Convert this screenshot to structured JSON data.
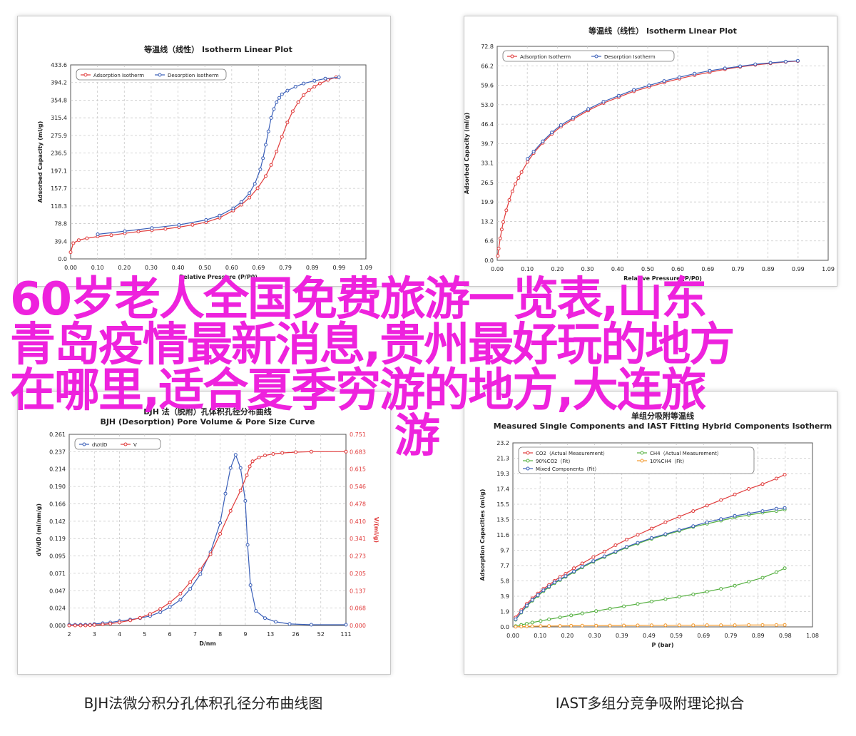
{
  "overlay": {
    "line1": "60岁老人全国免费旅游一览表,山东",
    "line2": "青岛疫情最新消息,贵州最好玩的地方",
    "line3": "在哪里,适合夏季穷游的地方,大连旅",
    "line4": "游",
    "color": "#ee22dd"
  },
  "captions": {
    "bottom_left": "BJH法微分积分孔体积孔径分布曲线图",
    "bottom_right": "IAST多组分竞争吸附理论拟合"
  },
  "colors": {
    "red": "#e03a3a",
    "blue": "#3a5fb8",
    "green": "#55b040",
    "orange": "#f29a2e"
  },
  "chart_data": [
    {
      "type": "line",
      "title": "等温线（线性） Isotherm Linear Plot",
      "xlabel": "Relative Pressure (P/P0)",
      "ylabel": "Adsorbed Capacity (ml/g)",
      "xlim": [
        0,
        1.09
      ],
      "ylim": [
        0,
        433.6
      ],
      "xticks": [
        "0.00",
        "0.10",
        "0.20",
        "0.30",
        "0.40",
        "0.50",
        "0.60",
        "0.69",
        "0.79",
        "0.89",
        "0.99",
        "1.09"
      ],
      "yticks": [
        "0.0",
        "39.4",
        "78.8",
        "118.3",
        "157.7",
        "197.1",
        "236.5",
        "275.9",
        "315.4",
        "354.8",
        "394.2",
        "433.6"
      ],
      "grid": true,
      "legend": "top-left",
      "series": [
        {
          "name": "Adsorption Isotherm",
          "color": "#e03a3a",
          "x": [
            0.0,
            0.01,
            0.03,
            0.06,
            0.1,
            0.15,
            0.2,
            0.25,
            0.3,
            0.35,
            0.4,
            0.45,
            0.5,
            0.55,
            0.6,
            0.63,
            0.66,
            0.69,
            0.72,
            0.74,
            0.76,
            0.78,
            0.8,
            0.82,
            0.84,
            0.86,
            0.88,
            0.9,
            0.92,
            0.95,
            0.98
          ],
          "y": [
            15,
            35,
            42,
            46,
            50,
            53,
            57,
            61,
            64,
            67,
            71,
            76,
            82,
            92,
            108,
            121,
            137,
            158,
            185,
            210,
            240,
            273,
            305,
            330,
            350,
            366,
            377,
            385,
            392,
            400,
            406
          ]
        },
        {
          "name": "Desorption Isotherm",
          "color": "#3a5fb8",
          "x": [
            0.1,
            0.2,
            0.3,
            0.4,
            0.5,
            0.55,
            0.6,
            0.63,
            0.66,
            0.68,
            0.7,
            0.71,
            0.72,
            0.73,
            0.74,
            0.75,
            0.76,
            0.77,
            0.78,
            0.8,
            0.83,
            0.86,
            0.9,
            0.94,
            0.99
          ],
          "y": [
            55,
            62,
            69,
            76,
            87,
            97,
            113,
            127,
            147,
            168,
            200,
            225,
            255,
            285,
            315,
            335,
            350,
            360,
            368,
            376,
            385,
            392,
            398,
            403,
            406
          ]
        }
      ]
    },
    {
      "type": "line",
      "title": "等温线（线性） Isotherm Linear Plot",
      "xlabel": "Relative Pressure (P/P0)",
      "ylabel": "Adsorbed Capacity (ml/g)",
      "xlim": [
        0,
        1.09
      ],
      "ylim": [
        0,
        72.8
      ],
      "xticks": [
        "0.00",
        "0.10",
        "0.20",
        "0.30",
        "0.40",
        "0.50",
        "0.60",
        "0.69",
        "0.79",
        "0.89",
        "0.99",
        "1.09"
      ],
      "yticks": [
        "0.0",
        "6.6",
        "13.2",
        "19.9",
        "26.5",
        "33.1",
        "39.7",
        "46.4",
        "53.0",
        "59.6",
        "66.2",
        "72.8"
      ],
      "grid": true,
      "legend": "top-left",
      "series": [
        {
          "name": "Adsorption Isotherm",
          "color": "#e03a3a",
          "x": [
            0.002,
            0.005,
            0.01,
            0.015,
            0.02,
            0.03,
            0.04,
            0.05,
            0.06,
            0.07,
            0.08,
            0.1,
            0.12,
            0.15,
            0.18,
            0.21,
            0.25,
            0.3,
            0.35,
            0.4,
            0.45,
            0.5,
            0.55,
            0.6,
            0.65,
            0.7,
            0.75,
            0.8,
            0.85,
            0.9,
            0.95,
            0.99
          ],
          "y": [
            1.5,
            4,
            7.5,
            10.5,
            13,
            17,
            20.5,
            23.5,
            26,
            28,
            30,
            33.5,
            36.5,
            40,
            43,
            45.5,
            48,
            51,
            53.5,
            55.5,
            57.5,
            59,
            60.5,
            61.8,
            63,
            64,
            65,
            65.8,
            66.5,
            67,
            67.5,
            67.8
          ]
        },
        {
          "name": "Desorption Isotherm",
          "color": "#3a5fb8",
          "x": [
            0.1,
            0.12,
            0.15,
            0.18,
            0.21,
            0.25,
            0.3,
            0.35,
            0.4,
            0.45,
            0.5,
            0.55,
            0.6,
            0.65,
            0.7,
            0.75,
            0.8,
            0.85,
            0.9,
            0.95,
            0.99
          ],
          "y": [
            34.5,
            37,
            40.5,
            43.5,
            46,
            48.5,
            51.5,
            54,
            56,
            58,
            59.5,
            61,
            62.3,
            63.5,
            64.5,
            65.3,
            66,
            66.7,
            67.2,
            67.6,
            67.9
          ]
        }
      ]
    },
    {
      "type": "line",
      "title": "BJH (Desorption) Pore Volume & Pore Size Curve",
      "title_cn": "BJH 法（脱附）孔体积孔径分布曲线",
      "xlabel": "D/nm",
      "ylabel": "dV/dD (ml/nm/g)",
      "y2label": "V/(ml/g)",
      "xticks": [
        "2",
        "3",
        "4",
        "5",
        "6",
        "7",
        "8",
        "9",
        "13",
        "26",
        "52",
        "111"
      ],
      "ylim": [
        0,
        0.261
      ],
      "yticks": [
        "0.000",
        "0.024",
        "0.047",
        "0.071",
        "0.095",
        "0.119",
        "0.142",
        "0.166",
        "0.190",
        "0.214",
        "0.237",
        "0.261"
      ],
      "y2lim": [
        0,
        0.751
      ],
      "y2ticks": [
        "0.000",
        "0.068",
        "0.137",
        "0.205",
        "0.273",
        "0.341",
        "0.410",
        "0.478",
        "0.546",
        "0.615",
        "0.683",
        "0.751"
      ],
      "grid": true,
      "legend": "top-left",
      "series": [
        {
          "name": "dV/dD",
          "color": "#3a5fb8",
          "axis": "left",
          "x": [
            2,
            2.2,
            2.4,
            2.6,
            2.8,
            3,
            3.3,
            3.6,
            4,
            4.4,
            4.8,
            5.2,
            5.6,
            6,
            6.4,
            6.8,
            7.2,
            7.6,
            8,
            8.2,
            8.4,
            8.6,
            8.8,
            9,
            9.3,
            9.7,
            10.5,
            12,
            15,
            22,
            40,
            111
          ],
          "y": [
            0.001,
            0.001,
            0.001,
            0.001,
            0.001,
            0.002,
            0.003,
            0.004,
            0.006,
            0.008,
            0.01,
            0.013,
            0.018,
            0.025,
            0.035,
            0.05,
            0.07,
            0.1,
            0.14,
            0.18,
            0.215,
            0.233,
            0.215,
            0.17,
            0.11,
            0.055,
            0.02,
            0.01,
            0.005,
            0.002,
            0.001,
            0.001
          ]
        },
        {
          "name": "V",
          "color": "#e03a3a",
          "axis": "right",
          "x": [
            2,
            2.2,
            2.4,
            2.6,
            2.8,
            3,
            3.3,
            3.6,
            4,
            4.4,
            4.8,
            5.2,
            5.6,
            6,
            6.4,
            6.8,
            7.2,
            7.6,
            8,
            8.4,
            8.8,
            9.2,
            9.6,
            10,
            11,
            12,
            14,
            18,
            26,
            40,
            111
          ],
          "y": [
            0.0,
            0.0,
            0.0,
            0.0,
            0.001,
            0.002,
            0.004,
            0.007,
            0.012,
            0.02,
            0.03,
            0.045,
            0.065,
            0.09,
            0.125,
            0.17,
            0.22,
            0.28,
            0.36,
            0.45,
            0.53,
            0.59,
            0.625,
            0.645,
            0.66,
            0.668,
            0.674,
            0.678,
            0.681,
            0.683,
            0.683
          ]
        }
      ]
    },
    {
      "type": "line",
      "title": "Measured Single Components and IAST Fitting Hybrid Components Isotherm",
      "title_cn": "单组分吸附等温线",
      "xlabel": "P (bar)",
      "ylabel": "Adsorption Capacities (ml/g)",
      "xlim": [
        0,
        1.08
      ],
      "ylim": [
        0,
        23.2
      ],
      "xticks": [
        "0.00",
        "0.10",
        "0.20",
        "0.30",
        "0.39",
        "0.49",
        "0.59",
        "0.69",
        "0.79",
        "0.89",
        "0.98",
        "1.08"
      ],
      "yticks": [
        "0.0",
        "1.9",
        "3.9",
        "5.8",
        "7.7",
        "9.7",
        "11.6",
        "13.5",
        "15.5",
        "17.4",
        "19.3",
        "21.3",
        "23.2"
      ],
      "grid": true,
      "legend": "top-left",
      "series": [
        {
          "name": "CO2（Actual Measurement）",
          "color": "#e03a3a",
          "x": [
            0.01,
            0.03,
            0.05,
            0.07,
            0.09,
            0.11,
            0.13,
            0.15,
            0.17,
            0.19,
            0.22,
            0.25,
            0.29,
            0.33,
            0.37,
            0.41,
            0.45,
            0.5,
            0.55,
            0.6,
            0.65,
            0.7,
            0.75,
            0.8,
            0.85,
            0.9,
            0.95,
            0.98
          ],
          "y": [
            1.2,
            2.1,
            2.9,
            3.6,
            4.2,
            4.8,
            5.3,
            5.8,
            6.3,
            6.7,
            7.4,
            8.0,
            8.8,
            9.5,
            10.3,
            11.0,
            11.6,
            12.4,
            13.2,
            13.9,
            14.6,
            15.3,
            16.0,
            16.7,
            17.4,
            18.0,
            18.7,
            19.2
          ]
        },
        {
          "name": "CH4（Actual Measurement）",
          "color": "#55b040",
          "x": [
            0.01,
            0.03,
            0.05,
            0.07,
            0.1,
            0.13,
            0.17,
            0.21,
            0.25,
            0.3,
            0.35,
            0.4,
            0.45,
            0.5,
            0.55,
            0.6,
            0.65,
            0.7,
            0.75,
            0.8,
            0.85,
            0.9,
            0.95,
            0.98
          ],
          "y": [
            0.1,
            0.25,
            0.4,
            0.55,
            0.75,
            0.95,
            1.2,
            1.45,
            1.7,
            2.0,
            2.3,
            2.6,
            2.9,
            3.2,
            3.5,
            3.8,
            4.1,
            4.45,
            4.8,
            5.2,
            5.7,
            6.2,
            6.9,
            7.4
          ]
        },
        {
          "name": "90%CO2（Fit）",
          "color": "#55b040",
          "x": [
            0.01,
            0.03,
            0.05,
            0.07,
            0.09,
            0.11,
            0.13,
            0.15,
            0.17,
            0.19,
            0.22,
            0.25,
            0.29,
            0.33,
            0.37,
            0.41,
            0.45,
            0.5,
            0.55,
            0.6,
            0.65,
            0.7,
            0.75,
            0.8,
            0.85,
            0.9,
            0.95,
            0.98
          ],
          "y": [
            0.9,
            1.8,
            2.6,
            3.3,
            3.9,
            4.5,
            5.0,
            5.5,
            5.9,
            6.3,
            6.9,
            7.5,
            8.2,
            8.8,
            9.4,
            10.0,
            10.5,
            11.1,
            11.6,
            12.1,
            12.6,
            13.0,
            13.4,
            13.8,
            14.1,
            14.4,
            14.6,
            14.8
          ]
        },
        {
          "name": "10%CH4（Fit）",
          "color": "#f29a2e",
          "x": [
            0.01,
            0.03,
            0.05,
            0.07,
            0.1,
            0.13,
            0.17,
            0.21,
            0.25,
            0.3,
            0.35,
            0.4,
            0.45,
            0.5,
            0.55,
            0.6,
            0.65,
            0.7,
            0.75,
            0.8,
            0.85,
            0.9,
            0.95,
            0.98
          ],
          "y": [
            0.02,
            0.04,
            0.06,
            0.08,
            0.1,
            0.11,
            0.13,
            0.14,
            0.15,
            0.16,
            0.17,
            0.18,
            0.19,
            0.2,
            0.2,
            0.21,
            0.21,
            0.22,
            0.22,
            0.22,
            0.23,
            0.23,
            0.23,
            0.24
          ]
        },
        {
          "name": "Mixed Components（Fit）",
          "color": "#3a5fb8",
          "x": [
            0.01,
            0.03,
            0.05,
            0.07,
            0.09,
            0.11,
            0.13,
            0.15,
            0.17,
            0.19,
            0.22,
            0.25,
            0.29,
            0.33,
            0.37,
            0.41,
            0.45,
            0.5,
            0.55,
            0.6,
            0.65,
            0.7,
            0.75,
            0.8,
            0.85,
            0.9,
            0.95,
            0.98
          ],
          "y": [
            0.95,
            1.85,
            2.7,
            3.4,
            4.0,
            4.6,
            5.1,
            5.6,
            6.0,
            6.4,
            7.0,
            7.6,
            8.3,
            8.9,
            9.5,
            10.1,
            10.6,
            11.2,
            11.7,
            12.2,
            12.7,
            13.2,
            13.6,
            14.0,
            14.3,
            14.6,
            14.9,
            15.0
          ]
        }
      ]
    }
  ]
}
